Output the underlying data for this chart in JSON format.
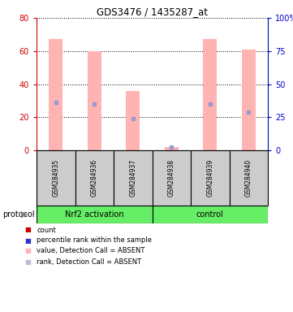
{
  "title": "GDS3476 / 1435287_at",
  "samples": [
    "GSM284935",
    "GSM284936",
    "GSM284937",
    "GSM284938",
    "GSM284939",
    "GSM284940"
  ],
  "pink_bars": [
    67,
    60,
    36,
    2,
    67,
    61
  ],
  "blue_markers": [
    29,
    28,
    19,
    2,
    28,
    23
  ],
  "pink_color": "#FFB3B3",
  "blue_color": "#9999CC",
  "red_square_color": "#CC0000",
  "blue_square_color": "#3333CC",
  "ylim_left": [
    0,
    80
  ],
  "ylim_right": [
    0,
    100
  ],
  "yticks_left": [
    0,
    20,
    40,
    60,
    80
  ],
  "yticks_right": [
    0,
    25,
    50,
    75,
    100
  ],
  "ytick_labels_right": [
    "0",
    "25",
    "50",
    "75",
    "100%"
  ],
  "left_axis_color": "#CC0000",
  "right_axis_color": "#0000CC",
  "group1_label": "Nrf2 activation",
  "group2_label": "control",
  "protocol_label": "protocol",
  "group1_indices": [
    0,
    1,
    2
  ],
  "group2_indices": [
    3,
    4,
    5
  ],
  "group_bg_color": "#66EE66",
  "sample_bg_color": "#CCCCCC",
  "legend_labels": [
    "count",
    "percentile rank within the sample",
    "value, Detection Call = ABSENT",
    "rank, Detection Call = ABSENT"
  ],
  "legend_colors": [
    "#CC0000",
    "#3333CC",
    "#FFB3B3",
    "#BBBBDD"
  ],
  "bar_width": 0.35
}
